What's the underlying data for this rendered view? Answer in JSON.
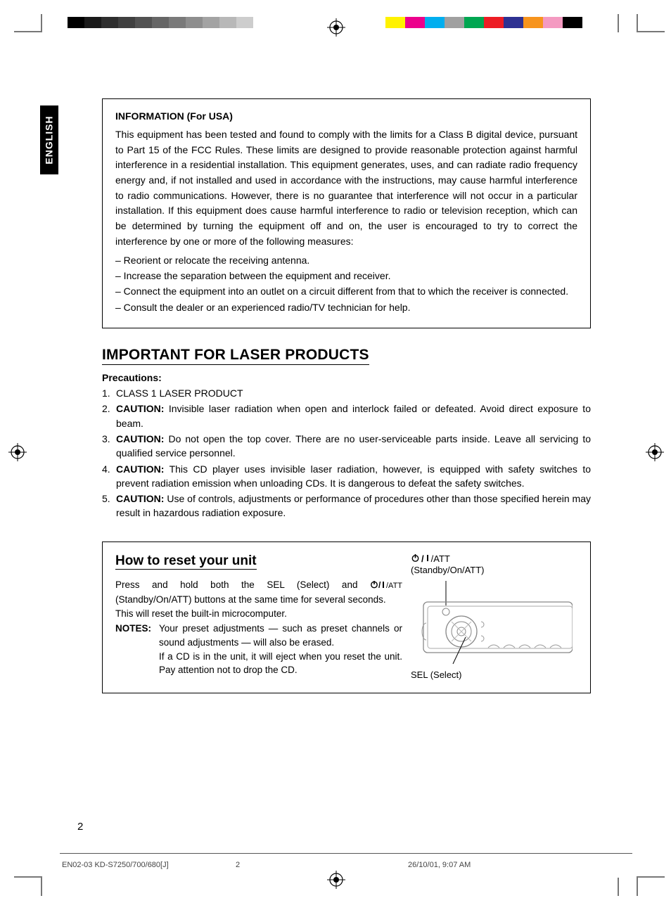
{
  "registration": {
    "gray_shades": [
      "#000000",
      "#1a1a1a",
      "#2e2e2e",
      "#404040",
      "#525252",
      "#666666",
      "#7a7a7a",
      "#8e8e8e",
      "#a3a3a3",
      "#b8b8b8",
      "#cdcdcd"
    ],
    "color_swatches": [
      "#fff200",
      "#ec008c",
      "#00aeef",
      "#a0a0a0",
      "#00a651",
      "#ed1c24",
      "#2e3192",
      "#f7941d",
      "#f49ac1",
      "#000000"
    ]
  },
  "language_tab": "ENGLISH",
  "info_box": {
    "title": "INFORMATION (For USA)",
    "body": "This equipment has been tested and found to comply with the limits for a Class B digital device, pursuant to Part 15 of the FCC Rules. These limits are designed to provide reasonable protection against harmful interference in a residential installation. This equipment generates, uses, and can radiate radio frequency energy and, if not installed and used in accordance with the instructions, may cause harmful interference to radio communications. However, there is no guarantee that interference will not occur in a particular installation. If this equipment does cause harmful interference to radio or television reception, which can be determined by turning the equipment off and on, the user is encouraged to try to correct the interference by one or more of the following measures:",
    "measures": [
      "– Reorient or relocate the receiving antenna.",
      "– Increase the separation between the equipment and receiver.",
      "– Connect the equipment into an outlet on a circuit different from that to which the receiver is connected.",
      "– Consult the dealer or an experienced radio/TV technician for help."
    ]
  },
  "laser_section": {
    "title": "IMPORTANT FOR LASER PRODUCTS",
    "subhead": "Precautions:",
    "items": [
      {
        "num": "1.",
        "bold": "",
        "text": "CLASS 1 LASER PRODUCT"
      },
      {
        "num": "2.",
        "bold": "CAUTION:",
        "text": " Invisible laser radiation when open and interlock failed or defeated. Avoid direct exposure to beam."
      },
      {
        "num": "3.",
        "bold": "CAUTION:",
        "text": " Do not open the top cover. There are no user-serviceable parts inside. Leave all servicing to qualified service personnel."
      },
      {
        "num": "4.",
        "bold": "CAUTION:",
        "text": " This CD player uses invisible laser radiation, however, is equipped with safety switches to prevent radiation emission when unloading CDs. It is dangerous to defeat the safety switches."
      },
      {
        "num": "5.",
        "bold": "CAUTION:",
        "text": " Use of controls, adjustments or performance of procedures other than those specified herein may result in hazardous radiation exposure."
      }
    ]
  },
  "reset_box": {
    "title": "How to reset your unit",
    "body_pre": "Press and hold both the SEL (Select) and ",
    "body_post": " (Standby/On/ATT) buttons at the same time for several seconds.",
    "line2": "This will reset the built-in microcomputer.",
    "notes_label": "NOTES:",
    "notes": [
      "Your preset adjustments — such as preset channels or sound adjustments — will also be erased.",
      "If a CD is in the unit, it will eject when you reset the unit. Pay attention not to drop the CD."
    ],
    "att_text": "/ATT",
    "att_sub": "(Standby/On/ATT)",
    "sel_label": "SEL (Select)"
  },
  "page_number": "2",
  "footer": {
    "doc_id": "EN02-03 KD-S7250/700/680[J]",
    "page": "2",
    "datetime": "26/10/01, 9:07 AM"
  },
  "colors": {
    "text": "#000000",
    "border": "#000000",
    "footer_rule": "#555555",
    "footer_text": "#444444"
  }
}
